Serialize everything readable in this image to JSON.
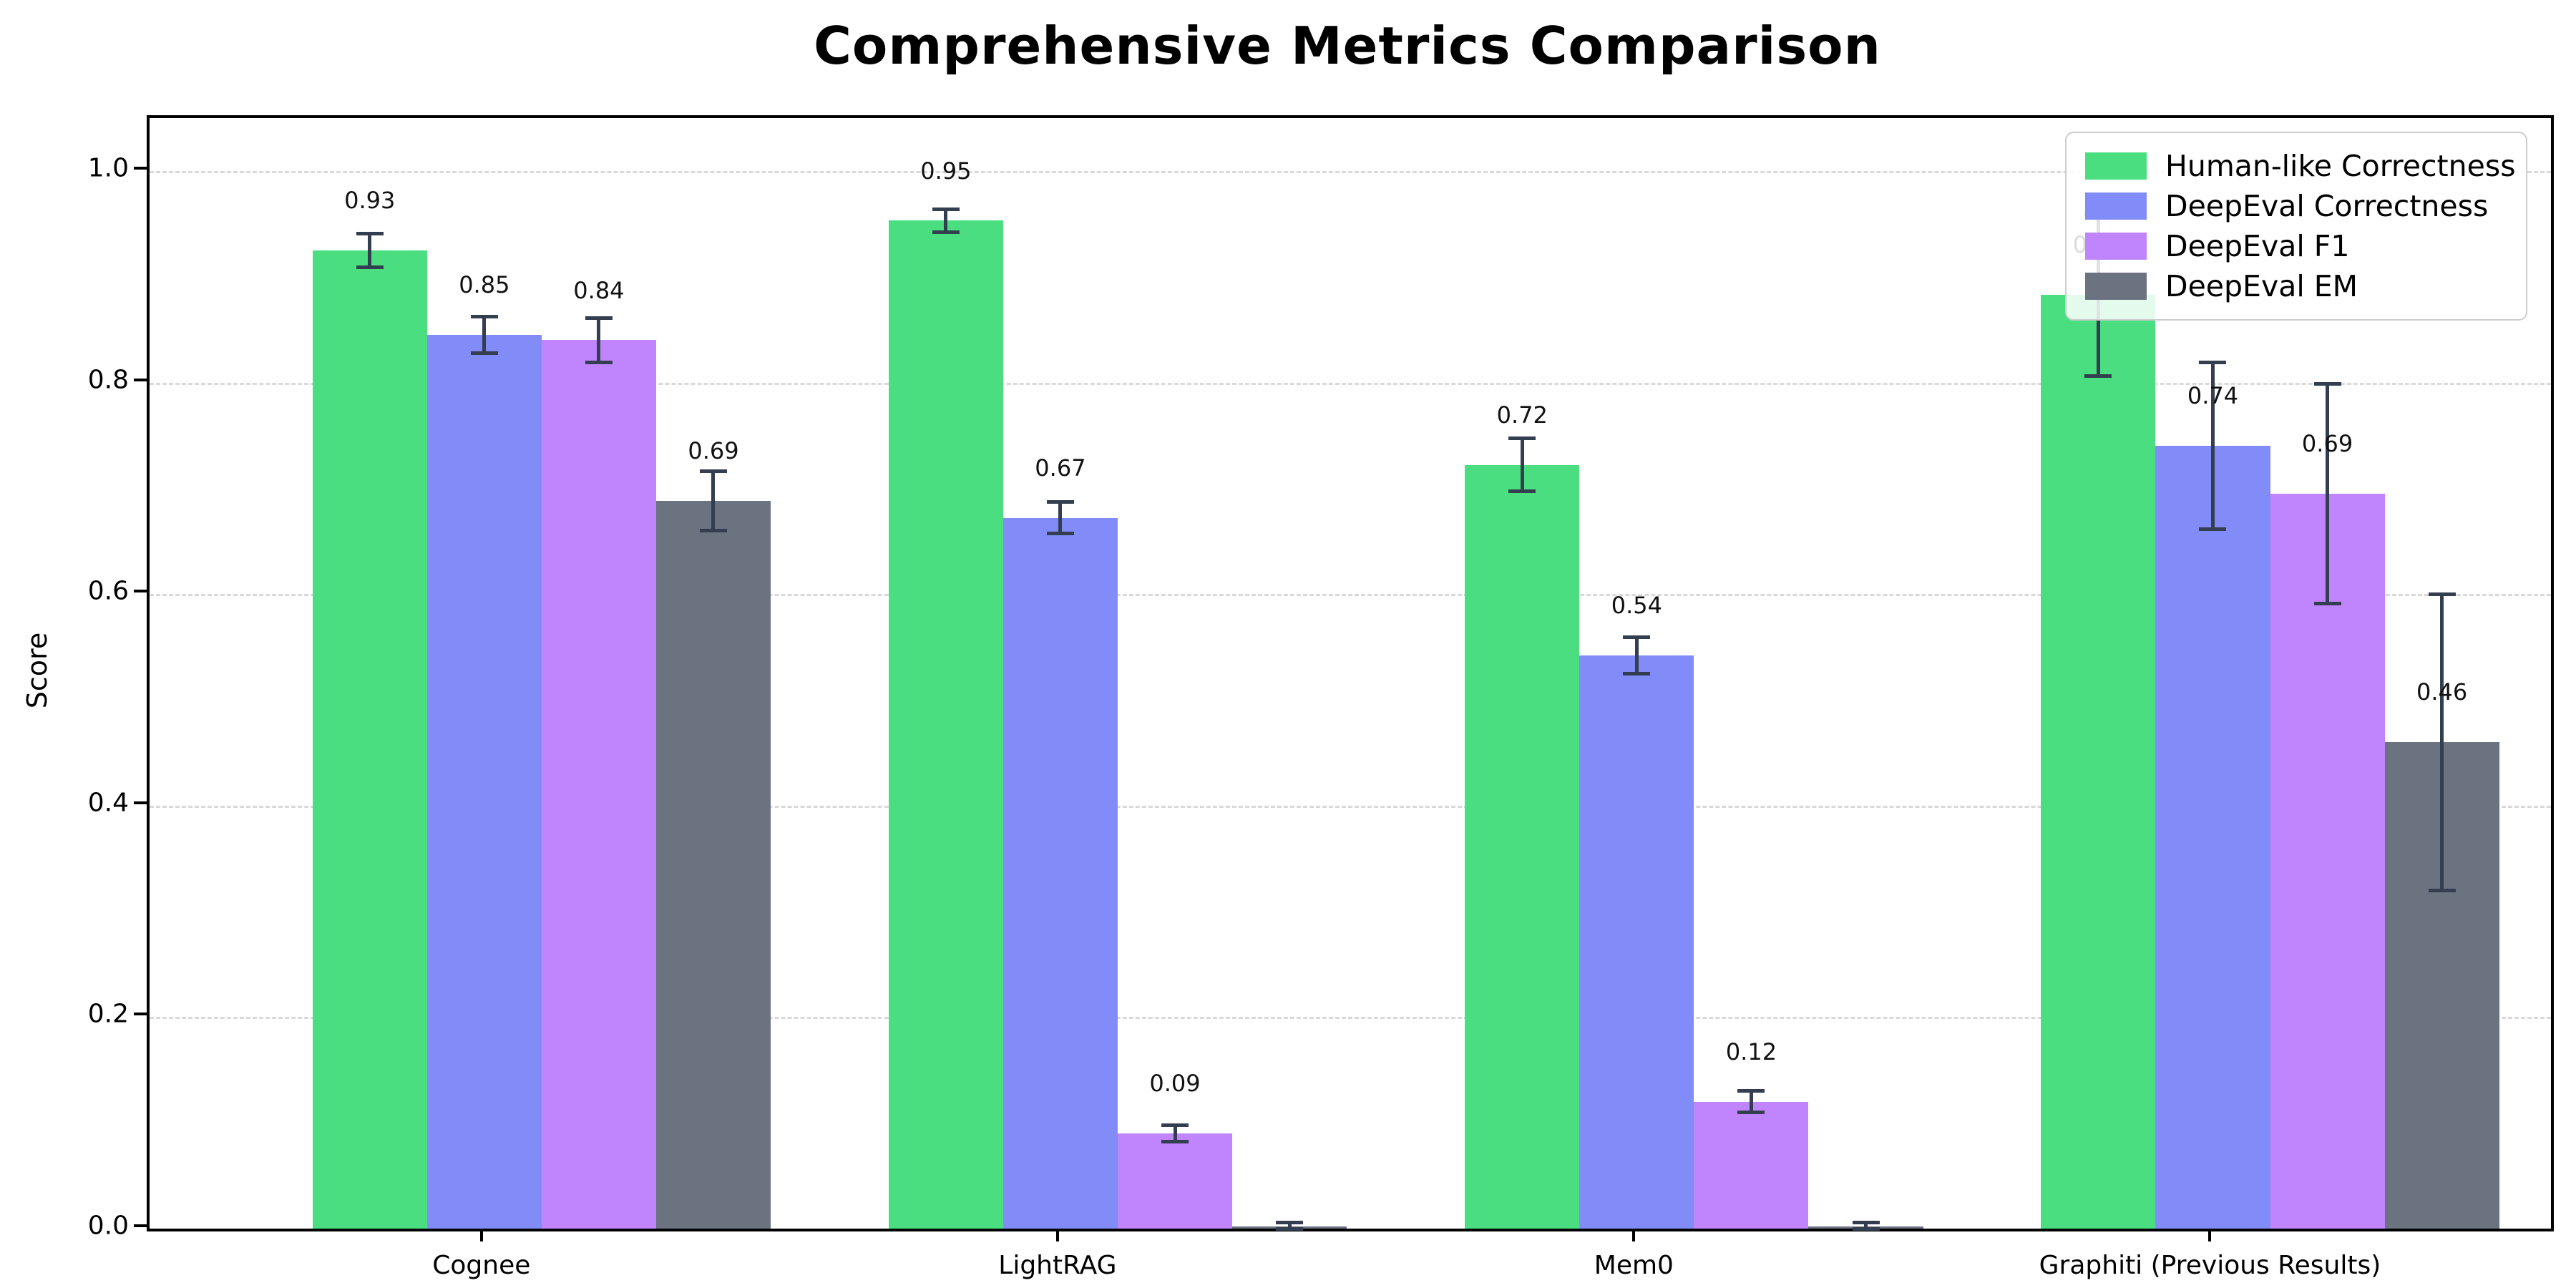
{
  "chart_data": {
    "type": "bar",
    "title": "Comprehensive Metrics Comparison",
    "ylabel": "Score",
    "xlabel": "",
    "ylim": [
      0,
      1.05
    ],
    "yticks": [
      {
        "value": 0.0,
        "label": "0.0"
      },
      {
        "value": 0.2,
        "label": "0.2"
      },
      {
        "value": 0.4,
        "label": "0.4"
      },
      {
        "value": 0.6,
        "label": "0.6"
      },
      {
        "value": 0.8,
        "label": "0.8"
      },
      {
        "value": 1.0,
        "label": "1.0"
      }
    ],
    "grid": "dashed-horizontal-on",
    "legend_position": "top-right-inside",
    "categories": [
      "Cognee",
      "LightRAG",
      "Mem0",
      "Graphiti (Previous Results)"
    ],
    "series": [
      {
        "name": "Human-like Correctness",
        "color": "#4ade80",
        "values": [
          0.925,
          0.953,
          0.722,
          0.883
        ],
        "value_labels": [
          "0.93",
          "0.95",
          "0.72",
          "0.88"
        ],
        "errors": [
          0.016,
          0.011,
          0.025,
          0.077
        ]
      },
      {
        "name": "DeepEval Correctness",
        "color": "#818cf8",
        "values": [
          0.845,
          0.672,
          0.542,
          0.74
        ],
        "value_labels": [
          "0.85",
          "0.67",
          "0.54",
          "0.74"
        ],
        "errors": [
          0.017,
          0.015,
          0.017,
          0.079
        ]
      },
      {
        "name": "DeepEval F1",
        "color": "#c084fc",
        "values": [
          0.84,
          0.09,
          0.12,
          0.695
        ],
        "value_labels": [
          "0.84",
          "0.09",
          "0.12",
          "0.69"
        ],
        "errors": [
          0.021,
          0.008,
          0.01,
          0.104
        ]
      },
      {
        "name": "DeepEval EM",
        "color": "#6b7280",
        "values": [
          0.688,
          0.002,
          0.002,
          0.46
        ],
        "value_labels": [
          "0.69",
          "",
          "",
          "0.46"
        ],
        "errors": [
          0.028,
          0.004,
          0.004,
          0.14
        ]
      }
    ],
    "colors": {
      "error_bar": "#333e50",
      "gridline": "#d9d9d9",
      "spine": "#000000",
      "background": "#ffffff"
    },
    "layout": {
      "group_center_fractions": [
        0.1394,
        0.3793,
        0.6193,
        0.8592
      ],
      "bar_width_fraction": 0.0477,
      "label_offset_score": 0.033
    }
  }
}
